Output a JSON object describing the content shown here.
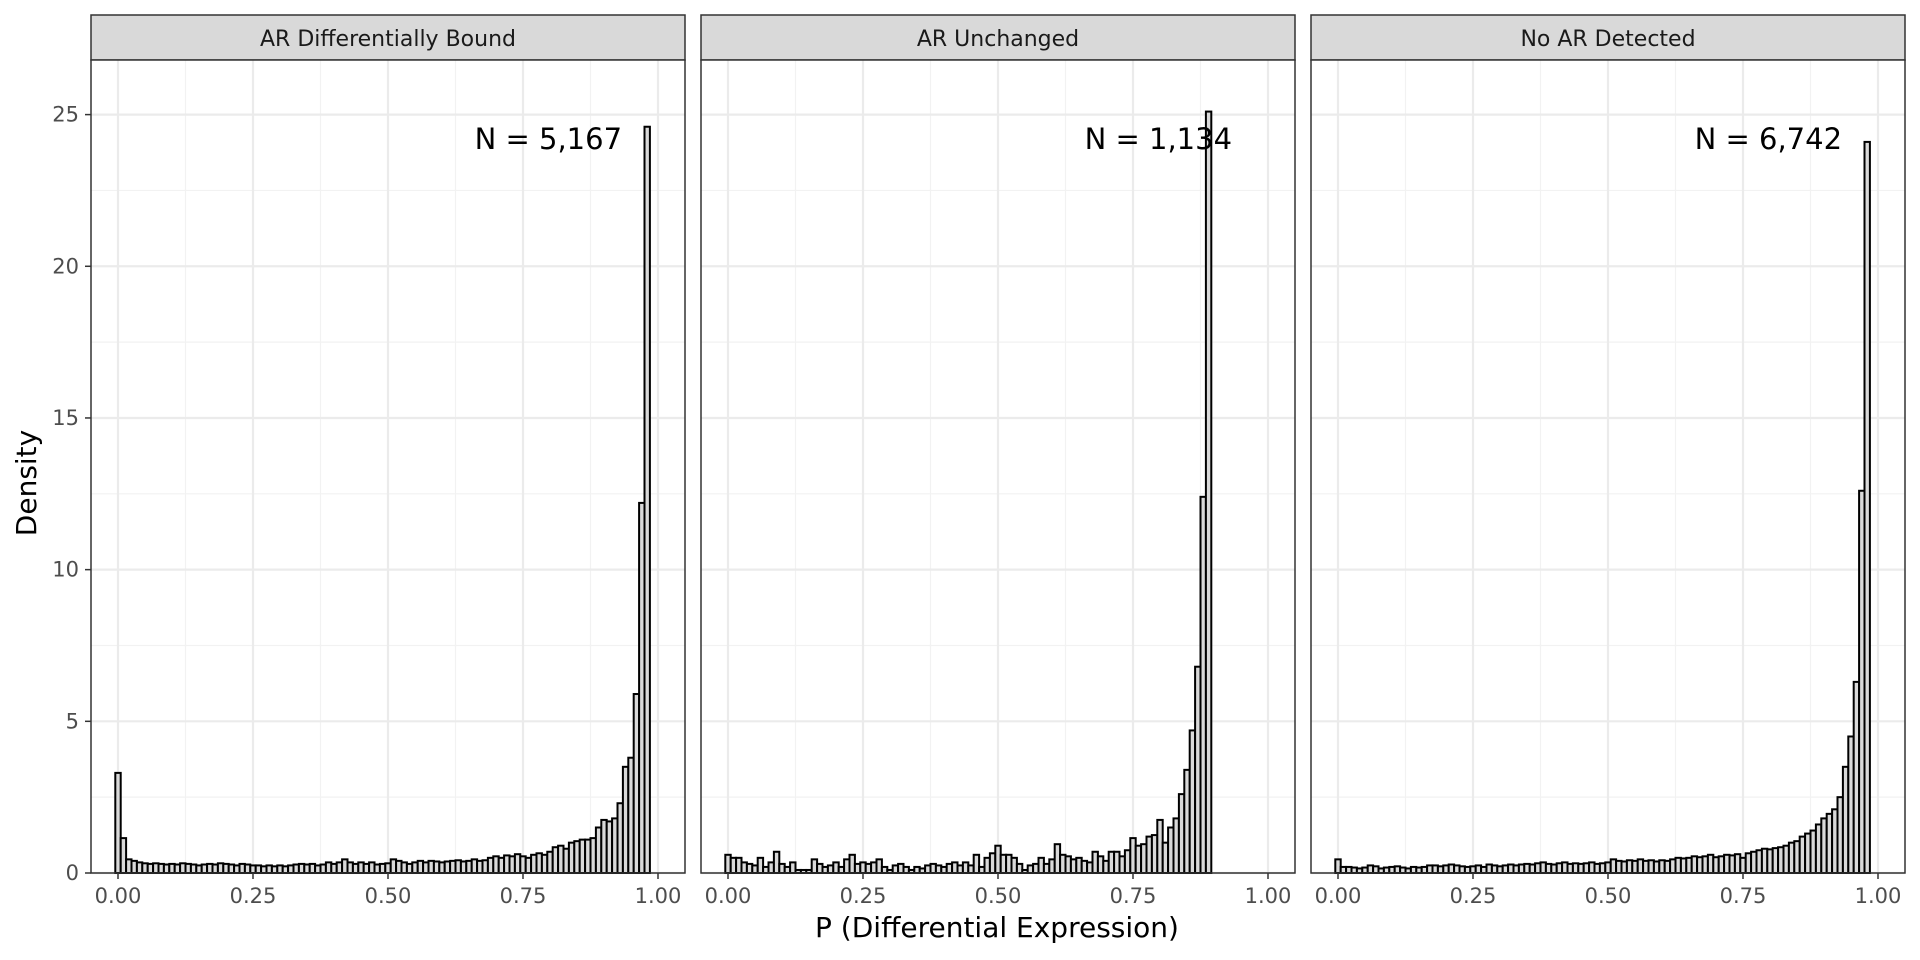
{
  "chart_data": {
    "type": "bar",
    "subtype": "faceted-histogram",
    "xlabel": "P (Differential Expression)",
    "ylabel": "Density",
    "xlim": [
      0,
      1
    ],
    "ylim": [
      0,
      25
    ],
    "xticks": [
      "0.00",
      "0.25",
      "0.50",
      "0.75",
      "1.00"
    ],
    "yticks": [
      "0",
      "5",
      "10",
      "15",
      "20",
      "25"
    ],
    "bins": 100,
    "bin_width": 0.01,
    "grid": true,
    "theme": "bw",
    "colors": {
      "bar_fill": "#d9d9d9",
      "bar_stroke": "#000000",
      "strip_fill": "#d9d9d9",
      "grid": "#ebebeb"
    },
    "facets": [
      {
        "title": "AR Differentially Bound",
        "annotation": "N = 5,167",
        "values": [
          3.3,
          1.15,
          0.45,
          0.4,
          0.35,
          0.32,
          0.3,
          0.32,
          0.3,
          0.28,
          0.3,
          0.28,
          0.32,
          0.3,
          0.28,
          0.25,
          0.28,
          0.3,
          0.28,
          0.32,
          0.3,
          0.28,
          0.25,
          0.3,
          0.28,
          0.25,
          0.25,
          0.22,
          0.25,
          0.22,
          0.25,
          0.22,
          0.25,
          0.28,
          0.3,
          0.28,
          0.3,
          0.25,
          0.28,
          0.35,
          0.3,
          0.35,
          0.45,
          0.35,
          0.3,
          0.35,
          0.3,
          0.35,
          0.28,
          0.3,
          0.32,
          0.45,
          0.4,
          0.35,
          0.3,
          0.35,
          0.4,
          0.35,
          0.4,
          0.38,
          0.35,
          0.38,
          0.4,
          0.42,
          0.38,
          0.4,
          0.45,
          0.4,
          0.42,
          0.5,
          0.55,
          0.5,
          0.58,
          0.55,
          0.62,
          0.55,
          0.5,
          0.6,
          0.65,
          0.6,
          0.7,
          0.85,
          0.9,
          0.8,
          1.0,
          1.05,
          1.1,
          1.1,
          1.15,
          1.5,
          1.75,
          1.7,
          1.8,
          2.3,
          3.5,
          3.8,
          5.9,
          12.2,
          24.6,
          0
        ]
      },
      {
        "title": "AR Unchanged",
        "annotation": "N = 1,134",
        "values": [
          0.6,
          0.5,
          0.5,
          0.35,
          0.3,
          0.25,
          0.5,
          0.2,
          0.35,
          0.7,
          0.3,
          0.2,
          0.35,
          0.1,
          0.1,
          0.1,
          0.45,
          0.3,
          0.2,
          0.25,
          0.35,
          0.2,
          0.45,
          0.6,
          0.3,
          0.35,
          0.3,
          0.35,
          0.45,
          0.2,
          0.1,
          0.25,
          0.3,
          0.2,
          0.1,
          0.2,
          0.15,
          0.25,
          0.3,
          0.25,
          0.2,
          0.3,
          0.35,
          0.25,
          0.35,
          0.25,
          0.6,
          0.2,
          0.5,
          0.65,
          0.9,
          0.6,
          0.6,
          0.5,
          0.3,
          0.1,
          0.25,
          0.3,
          0.5,
          0.3,
          0.45,
          0.95,
          0.6,
          0.55,
          0.45,
          0.5,
          0.4,
          0.35,
          0.7,
          0.55,
          0.4,
          0.7,
          0.7,
          0.55,
          0.75,
          1.15,
          0.9,
          0.95,
          1.2,
          1.25,
          1.75,
          1.0,
          1.5,
          1.8,
          2.6,
          3.4,
          4.7,
          6.8,
          12.4,
          25.1,
          0,
          0,
          0,
          0,
          0,
          0,
          0,
          0,
          0,
          0
        ]
      },
      {
        "title": "No AR Detected",
        "annotation": "N = 6,742",
        "values": [
          0.45,
          0.2,
          0.2,
          0.18,
          0.15,
          0.18,
          0.25,
          0.22,
          0.15,
          0.18,
          0.2,
          0.22,
          0.18,
          0.15,
          0.2,
          0.18,
          0.2,
          0.25,
          0.25,
          0.22,
          0.25,
          0.28,
          0.25,
          0.22,
          0.2,
          0.22,
          0.25,
          0.2,
          0.28,
          0.25,
          0.22,
          0.25,
          0.28,
          0.25,
          0.28,
          0.3,
          0.28,
          0.32,
          0.35,
          0.3,
          0.28,
          0.32,
          0.35,
          0.3,
          0.32,
          0.3,
          0.32,
          0.35,
          0.3,
          0.32,
          0.35,
          0.45,
          0.4,
          0.38,
          0.42,
          0.4,
          0.45,
          0.4,
          0.42,
          0.38,
          0.42,
          0.4,
          0.45,
          0.5,
          0.48,
          0.5,
          0.55,
          0.52,
          0.55,
          0.6,
          0.52,
          0.55,
          0.6,
          0.58,
          0.62,
          0.5,
          0.65,
          0.7,
          0.75,
          0.8,
          0.78,
          0.82,
          0.85,
          0.9,
          1.0,
          1.05,
          1.2,
          1.3,
          1.4,
          1.6,
          1.8,
          1.95,
          2.1,
          2.5,
          3.5,
          4.5,
          6.3,
          12.6,
          24.1,
          0
        ]
      }
    ]
  }
}
